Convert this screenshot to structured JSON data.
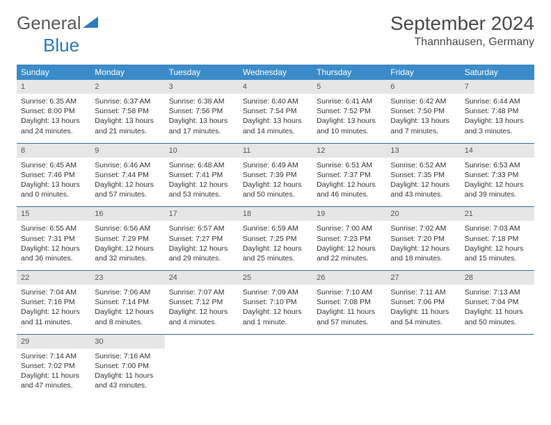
{
  "logo": {
    "text1": "General",
    "text2": "Blue"
  },
  "title": "September 2024",
  "location": "Thannhausen, Germany",
  "colors": {
    "header_bg": "#3b8bc9",
    "header_text": "#ffffff",
    "daynum_bg": "#e6e6e6",
    "body_text": "#333333",
    "separator": "#3b6e94",
    "logo_gray": "#5a5a5a",
    "logo_blue": "#2b7bbd"
  },
  "fonts": {
    "title_size_pt": 21,
    "location_size_pt": 12,
    "dow_size_pt": 9,
    "daynum_size_pt": 8,
    "body_size_pt": 8
  },
  "calendar": {
    "type": "table",
    "columns": [
      "Sunday",
      "Monday",
      "Tuesday",
      "Wednesday",
      "Thursday",
      "Friday",
      "Saturday"
    ],
    "weeks": [
      [
        {
          "num": "1",
          "sunrise": "6:35 AM",
          "sunset": "8:00 PM",
          "daylight": "13 hours and 24 minutes."
        },
        {
          "num": "2",
          "sunrise": "6:37 AM",
          "sunset": "7:58 PM",
          "daylight": "13 hours and 21 minutes."
        },
        {
          "num": "3",
          "sunrise": "6:38 AM",
          "sunset": "7:56 PM",
          "daylight": "13 hours and 17 minutes."
        },
        {
          "num": "4",
          "sunrise": "6:40 AM",
          "sunset": "7:54 PM",
          "daylight": "13 hours and 14 minutes."
        },
        {
          "num": "5",
          "sunrise": "6:41 AM",
          "sunset": "7:52 PM",
          "daylight": "13 hours and 10 minutes."
        },
        {
          "num": "6",
          "sunrise": "6:42 AM",
          "sunset": "7:50 PM",
          "daylight": "13 hours and 7 minutes."
        },
        {
          "num": "7",
          "sunrise": "6:44 AM",
          "sunset": "7:48 PM",
          "daylight": "13 hours and 3 minutes."
        }
      ],
      [
        {
          "num": "8",
          "sunrise": "6:45 AM",
          "sunset": "7:46 PM",
          "daylight": "13 hours and 0 minutes."
        },
        {
          "num": "9",
          "sunrise": "6:46 AM",
          "sunset": "7:44 PM",
          "daylight": "12 hours and 57 minutes."
        },
        {
          "num": "10",
          "sunrise": "6:48 AM",
          "sunset": "7:41 PM",
          "daylight": "12 hours and 53 minutes."
        },
        {
          "num": "11",
          "sunrise": "6:49 AM",
          "sunset": "7:39 PM",
          "daylight": "12 hours and 50 minutes."
        },
        {
          "num": "12",
          "sunrise": "6:51 AM",
          "sunset": "7:37 PM",
          "daylight": "12 hours and 46 minutes."
        },
        {
          "num": "13",
          "sunrise": "6:52 AM",
          "sunset": "7:35 PM",
          "daylight": "12 hours and 43 minutes."
        },
        {
          "num": "14",
          "sunrise": "6:53 AM",
          "sunset": "7:33 PM",
          "daylight": "12 hours and 39 minutes."
        }
      ],
      [
        {
          "num": "15",
          "sunrise": "6:55 AM",
          "sunset": "7:31 PM",
          "daylight": "12 hours and 36 minutes."
        },
        {
          "num": "16",
          "sunrise": "6:56 AM",
          "sunset": "7:29 PM",
          "daylight": "12 hours and 32 minutes."
        },
        {
          "num": "17",
          "sunrise": "6:57 AM",
          "sunset": "7:27 PM",
          "daylight": "12 hours and 29 minutes."
        },
        {
          "num": "18",
          "sunrise": "6:59 AM",
          "sunset": "7:25 PM",
          "daylight": "12 hours and 25 minutes."
        },
        {
          "num": "19",
          "sunrise": "7:00 AM",
          "sunset": "7:23 PM",
          "daylight": "12 hours and 22 minutes."
        },
        {
          "num": "20",
          "sunrise": "7:02 AM",
          "sunset": "7:20 PM",
          "daylight": "12 hours and 18 minutes."
        },
        {
          "num": "21",
          "sunrise": "7:03 AM",
          "sunset": "7:18 PM",
          "daylight": "12 hours and 15 minutes."
        }
      ],
      [
        {
          "num": "22",
          "sunrise": "7:04 AM",
          "sunset": "7:16 PM",
          "daylight": "12 hours and 11 minutes."
        },
        {
          "num": "23",
          "sunrise": "7:06 AM",
          "sunset": "7:14 PM",
          "daylight": "12 hours and 8 minutes."
        },
        {
          "num": "24",
          "sunrise": "7:07 AM",
          "sunset": "7:12 PM",
          "daylight": "12 hours and 4 minutes."
        },
        {
          "num": "25",
          "sunrise": "7:09 AM",
          "sunset": "7:10 PM",
          "daylight": "12 hours and 1 minute."
        },
        {
          "num": "26",
          "sunrise": "7:10 AM",
          "sunset": "7:08 PM",
          "daylight": "11 hours and 57 minutes."
        },
        {
          "num": "27",
          "sunrise": "7:11 AM",
          "sunset": "7:06 PM",
          "daylight": "11 hours and 54 minutes."
        },
        {
          "num": "28",
          "sunrise": "7:13 AM",
          "sunset": "7:04 PM",
          "daylight": "11 hours and 50 minutes."
        }
      ],
      [
        {
          "num": "29",
          "sunrise": "7:14 AM",
          "sunset": "7:02 PM",
          "daylight": "11 hours and 47 minutes."
        },
        {
          "num": "30",
          "sunrise": "7:16 AM",
          "sunset": "7:00 PM",
          "daylight": "11 hours and 43 minutes."
        },
        null,
        null,
        null,
        null,
        null
      ]
    ],
    "labels": {
      "sunrise": "Sunrise:",
      "sunset": "Sunset:",
      "daylight": "Daylight:"
    }
  }
}
